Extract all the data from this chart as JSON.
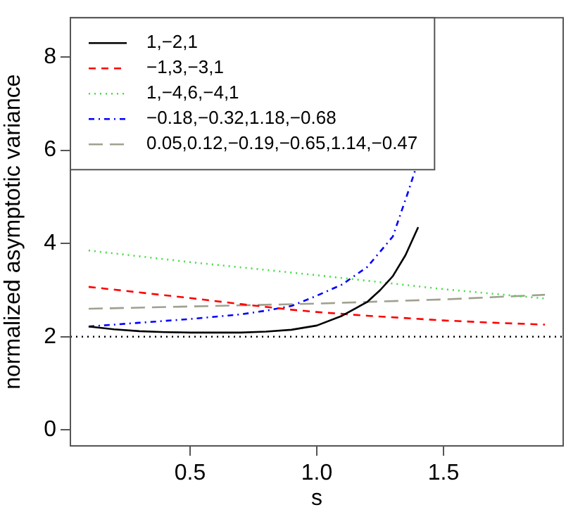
{
  "chart_data": {
    "type": "line",
    "xlabel": "s",
    "ylabel": "normalized asymptotic variance",
    "xlim": [
      0.028,
      1.972
    ],
    "ylim": [
      -0.34,
      8.84
    ],
    "xticks": [
      {
        "value": 0.5,
        "label": "0.5"
      },
      {
        "value": 1,
        "label": "1.0"
      },
      {
        "value": 1.5,
        "label": "1.5"
      }
    ],
    "yticks": [
      0,
      2,
      4,
      6,
      8
    ],
    "grid": false,
    "legend": "top left",
    "marker": "none",
    "ref_lines": [
      {
        "axis": "y",
        "value": 2,
        "color": "#000000",
        "line_style": "dotted"
      }
    ],
    "series": [
      {
        "name": "1,−2,1",
        "color": "#000000",
        "line_style": "solid",
        "x": [
          0.1,
          0.2,
          0.3,
          0.4,
          0.5,
          0.6,
          0.7,
          0.8,
          0.9,
          1.0,
          1.1,
          1.2,
          1.25,
          1.3,
          1.35,
          1.4
        ],
        "values": [
          2.22,
          2.16,
          2.12,
          2.1,
          2.09,
          2.09,
          2.09,
          2.11,
          2.15,
          2.24,
          2.45,
          2.75,
          3.0,
          3.3,
          3.75,
          4.35
        ]
      },
      {
        "name": "−1,3,−3,1",
        "color": "#ff0000",
        "line_style": "dashed",
        "x": [
          0.1,
          0.3,
          0.5,
          0.7,
          0.9,
          1.0,
          1.2,
          1.5,
          1.7,
          1.9
        ],
        "values": [
          3.07,
          2.95,
          2.83,
          2.7,
          2.58,
          2.53,
          2.45,
          2.35,
          2.3,
          2.26
        ]
      },
      {
        "name": "1,−4,6,−4,1",
        "color": "#44dd44",
        "line_style": "dotted",
        "x": [
          0.1,
          0.5,
          1.0,
          1.5,
          1.9
        ],
        "values": [
          3.85,
          3.6,
          3.32,
          3.02,
          2.82
        ]
      },
      {
        "name": "−0.18,−0.32,1.18,−0.68",
        "color": "#0000ff",
        "line_style": "dashdot",
        "x": [
          0.1,
          0.3,
          0.5,
          0.7,
          0.8,
          0.9,
          1.0,
          1.1,
          1.2,
          1.3,
          1.36,
          1.39
        ],
        "values": [
          2.22,
          2.3,
          2.38,
          2.48,
          2.56,
          2.66,
          2.88,
          3.12,
          3.5,
          4.15,
          5.1,
          5.6
        ]
      },
      {
        "name": "0.05,0.12,−0.19,−0.65,1.14,−0.47",
        "color": "#a0a090",
        "line_style": "longdash",
        "x": [
          0.1,
          1.0,
          1.5,
          1.9
        ],
        "values": [
          2.6,
          2.71,
          2.8,
          2.9
        ]
      }
    ]
  }
}
